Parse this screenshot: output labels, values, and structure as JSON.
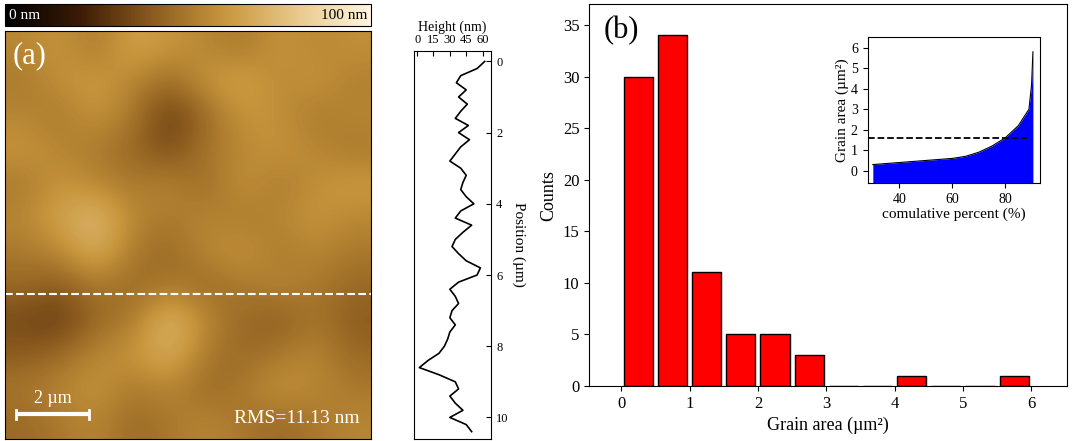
{
  "chart_data": [
    {
      "type": "heatmap",
      "label": "(a)",
      "annotation": "RMS=11.13 nm",
      "scale_bar": {
        "length": 2,
        "label": "2 µm"
      },
      "xlim": [
        0,
        10
      ],
      "ylim": [
        11,
        0
      ],
      "profile_line": 7.1,
      "tick_labels": false,
      "cells": [
        [
          55,
          60,
          50,
          65,
          60,
          55,
          50,
          60,
          55,
          58
        ],
        [
          50,
          58,
          62,
          55,
          45,
          60,
          65,
          55,
          60,
          52
        ],
        [
          55,
          50,
          60,
          50,
          30,
          45,
          60,
          58,
          50,
          55
        ],
        [
          60,
          55,
          50,
          45,
          35,
          50,
          55,
          60,
          55,
          50
        ],
        [
          50,
          60,
          55,
          50,
          55,
          45,
          60,
          50,
          58,
          62
        ],
        [
          55,
          65,
          75,
          55,
          50,
          55,
          50,
          55,
          60,
          55
        ],
        [
          50,
          55,
          70,
          50,
          45,
          55,
          60,
          50,
          55,
          50
        ],
        [
          45,
          40,
          50,
          45,
          50,
          45,
          50,
          55,
          50,
          45
        ],
        [
          35,
          30,
          45,
          50,
          75,
          55,
          45,
          40,
          50,
          40
        ],
        [
          40,
          45,
          55,
          60,
          70,
          50,
          45,
          50,
          55,
          45
        ],
        [
          50,
          55,
          60,
          50,
          55,
          45,
          50,
          60,
          55,
          50
        ],
        [
          45,
          50,
          55,
          45,
          50,
          55,
          50,
          45,
          50,
          55
        ]
      ],
      "colorbar": {
        "range": [
          0,
          100
        ],
        "labels": [
          {
            "value": 0,
            "label": "0 nm"
          },
          {
            "value": 100,
            "label": "100 nm"
          }
        ]
      }
    },
    {
      "type": "line",
      "orientation": "horizontal",
      "x_label": "Height (nm)",
      "y_label": "Position (µm)",
      "color": "#000000",
      "y": [
        0.0,
        0.2,
        0.4,
        0.6,
        0.8,
        1.0,
        1.2,
        1.4,
        1.6,
        1.8,
        2.0,
        2.2,
        2.4,
        2.6,
        2.8,
        3.0,
        3.2,
        3.4,
        3.6,
        3.8,
        4.0,
        4.2,
        4.4,
        4.6,
        4.8,
        5.0,
        5.2,
        5.4,
        5.6,
        5.8,
        6.0,
        6.2,
        6.4,
        6.6,
        6.8,
        7.0,
        7.2,
        7.4,
        7.6,
        7.8,
        8.0,
        8.2,
        8.4,
        8.6,
        8.8,
        9.0,
        9.2,
        9.4,
        9.6,
        9.8,
        10.0,
        10.2,
        10.4
      ],
      "values": [
        62,
        55,
        40,
        36,
        45,
        38,
        46,
        40,
        35,
        47,
        38,
        48,
        40,
        35,
        30,
        40,
        45,
        42,
        40,
        45,
        52,
        40,
        35,
        50,
        42,
        35,
        32,
        38,
        45,
        58,
        55,
        38,
        30,
        35,
        38,
        32,
        30,
        35,
        30,
        28,
        25,
        20,
        10,
        2,
        20,
        35,
        38,
        30,
        35,
        42,
        30,
        45,
        50
      ],
      "xlim": [
        -3,
        68
      ],
      "xticks": [
        0,
        15,
        30,
        45,
        60
      ],
      "ylim": [
        10.6,
        -0.3
      ],
      "yticks": [
        0,
        2,
        4,
        6,
        8,
        10
      ]
    },
    {
      "type": "histogram",
      "label": "(b)",
      "x_label": "Grain area (µm²)",
      "y_label": "Counts",
      "color": "#ff0000",
      "bins": [
        0,
        0.5,
        1,
        1.5,
        2,
        2.5,
        3,
        3.5,
        4,
        4.5,
        5,
        5.5,
        6
      ],
      "counts": [
        30,
        34,
        11,
        5,
        5,
        3,
        0,
        0,
        1,
        0,
        0,
        1
      ],
      "xlim": [
        -0.47,
        6.53
      ],
      "xticks": [
        0,
        1,
        2,
        3,
        4,
        5,
        6
      ],
      "ylim": [
        0,
        37
      ],
      "yticks": [
        0,
        5,
        10,
        15,
        20,
        25,
        30,
        35
      ]
    },
    {
      "type": "area",
      "x_label": "comulative percent (%)",
      "y_label": "Grain area (µm²)",
      "color": "#0000ff",
      "x": [
        30,
        40,
        50,
        60,
        65,
        70,
        75,
        80,
        85,
        88,
        89,
        90,
        90.5
      ],
      "values": [
        0.3,
        0.4,
        0.5,
        0.6,
        0.7,
        0.9,
        1.2,
        1.6,
        2.2,
        2.8,
        3.0,
        4.2,
        5.8
      ],
      "hline": 1.6,
      "xlim": [
        28,
        93
      ],
      "xticks": [
        40,
        60,
        80
      ],
      "ylim": [
        -0.6,
        6.5
      ],
      "yticks": [
        0,
        1,
        2,
        3,
        4,
        5,
        6
      ]
    }
  ]
}
